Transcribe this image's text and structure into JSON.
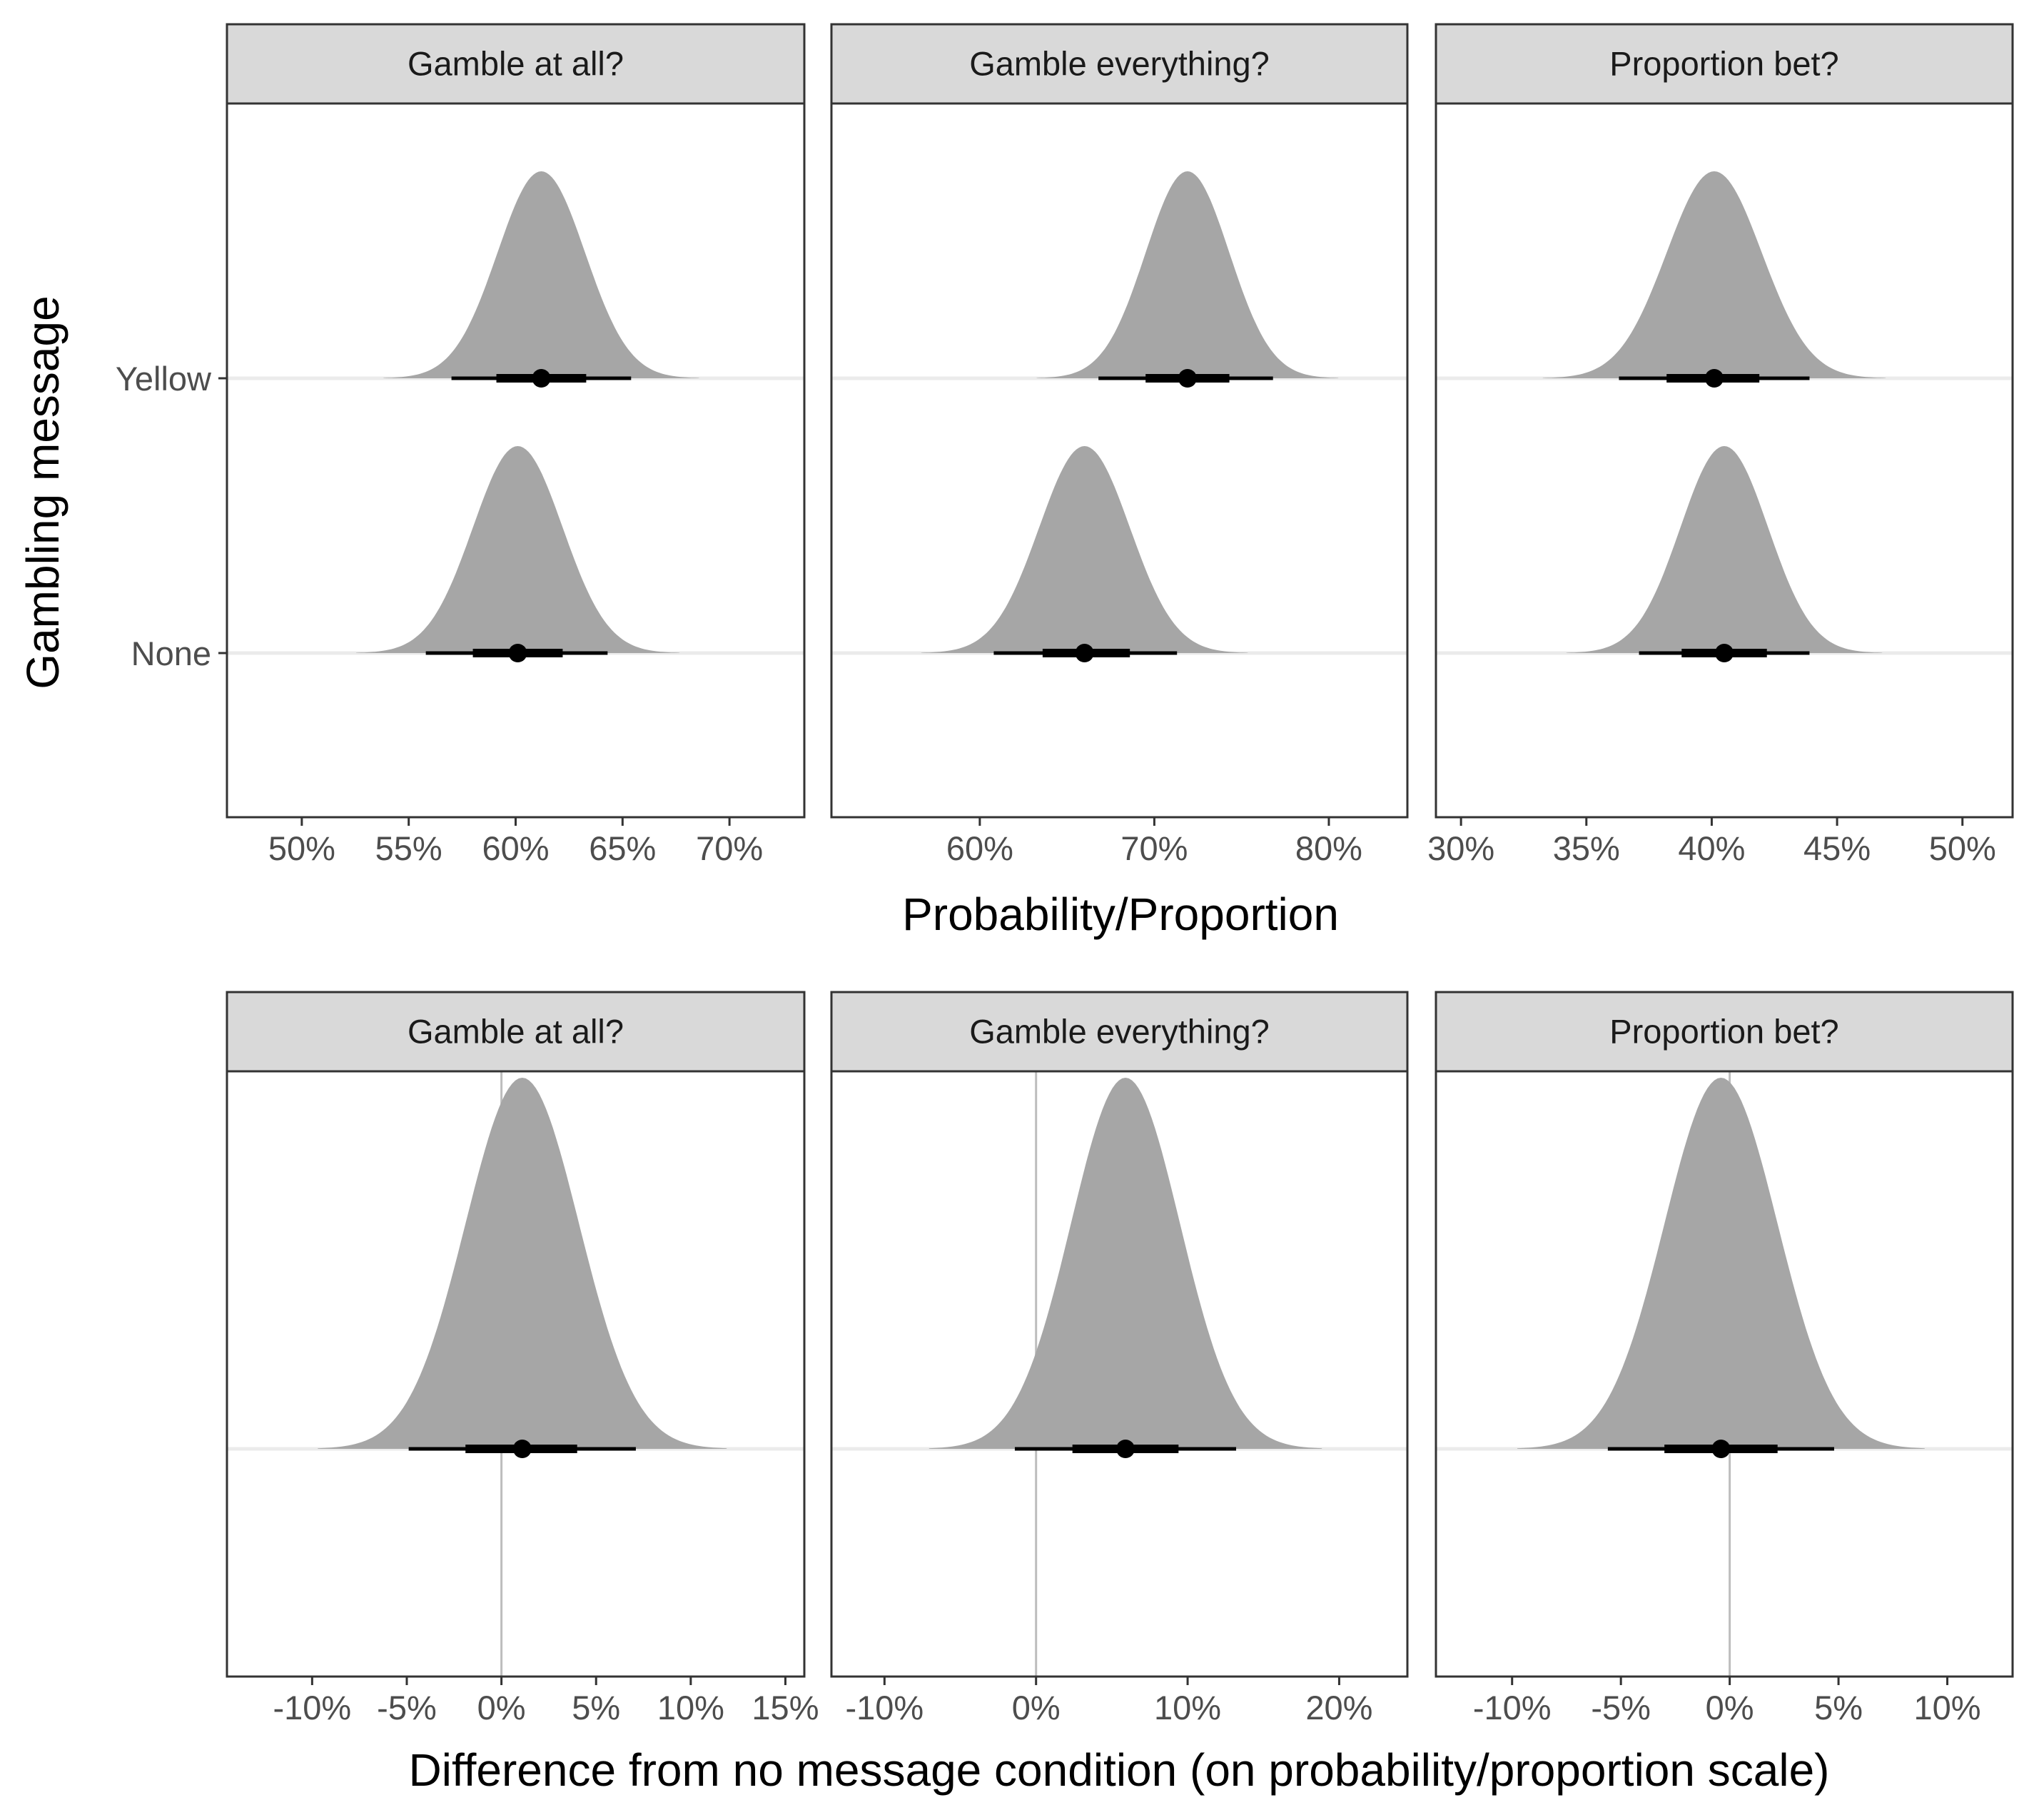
{
  "chart_data": [
    {
      "type": "halfeye",
      "row": "top",
      "title": "Gamble at all?",
      "xlabel": "Probability/Proportion",
      "ylabel": "Gambling message",
      "xlim": [
        0.465,
        0.735
      ],
      "x_ticks": [
        0.5,
        0.55,
        0.6,
        0.65,
        0.7
      ],
      "x_tick_labels": [
        "50%",
        "55%",
        "60%",
        "65%",
        "70%"
      ],
      "y_categories": [
        "Yellow",
        "None"
      ],
      "series": [
        {
          "category": "Yellow",
          "median": 0.612,
          "interval_66": [
            0.591,
            0.633
          ],
          "interval_95": [
            0.57,
            0.654
          ],
          "sd": 0.0205
        },
        {
          "category": "None",
          "median": 0.601,
          "interval_66": [
            0.58,
            0.622
          ],
          "interval_95": [
            0.558,
            0.643
          ],
          "sd": 0.021
        }
      ]
    },
    {
      "type": "halfeye",
      "row": "top",
      "title": "Gamble everything?",
      "xlabel": "Probability/Proportion",
      "ylabel": "Gambling message",
      "xlim": [
        0.515,
        0.845
      ],
      "x_ticks": [
        0.6,
        0.7,
        0.8
      ],
      "x_tick_labels": [
        "60%",
        "70%",
        "80%"
      ],
      "y_categories": [
        "Yellow",
        "None"
      ],
      "series": [
        {
          "category": "Yellow",
          "median": 0.719,
          "interval_66": [
            0.695,
            0.743
          ],
          "interval_95": [
            0.668,
            0.768
          ],
          "sd": 0.024
        },
        {
          "category": "None",
          "median": 0.66,
          "interval_66": [
            0.636,
            0.686
          ],
          "interval_95": [
            0.608,
            0.713
          ],
          "sd": 0.026
        }
      ]
    },
    {
      "type": "halfeye",
      "row": "top",
      "title": "Proportion bet?",
      "xlabel": "Probability/Proportion",
      "ylabel": "Gambling message",
      "xlim": [
        0.29,
        0.52
      ],
      "x_ticks": [
        0.3,
        0.35,
        0.4,
        0.45,
        0.5
      ],
      "x_tick_labels": [
        "30%",
        "35%",
        "40%",
        "45%",
        "50%"
      ],
      "y_categories": [
        "Yellow",
        "None"
      ],
      "series": [
        {
          "category": "Yellow",
          "median": 0.401,
          "interval_66": [
            0.382,
            0.419
          ],
          "interval_95": [
            0.363,
            0.439
          ],
          "sd": 0.019
        },
        {
          "category": "None",
          "median": 0.405,
          "interval_66": [
            0.388,
            0.422
          ],
          "interval_95": [
            0.371,
            0.439
          ],
          "sd": 0.0175
        }
      ]
    },
    {
      "type": "halfeye",
      "row": "bottom",
      "title": "Gamble at all?",
      "xlabel": "Difference from no message condition (on probability/proportion scale)",
      "xlim": [
        -0.145,
        0.16
      ],
      "x_ticks": [
        -0.1,
        -0.05,
        0.0,
        0.05,
        0.1,
        0.15
      ],
      "x_tick_labels": [
        "-10%",
        "-5%",
        "0%",
        "5%",
        "10%",
        "15%"
      ],
      "reference_line": 0,
      "series": [
        {
          "median": 0.011,
          "interval_66": [
            -0.019,
            0.04
          ],
          "interval_95": [
            -0.049,
            0.071
          ],
          "sd": 0.03
        }
      ]
    },
    {
      "type": "halfeye",
      "row": "bottom",
      "title": "Gamble everything?",
      "xlabel": "Difference from no message condition (on probability/proportion scale)",
      "xlim": [
        -0.135,
        0.245
      ],
      "x_ticks": [
        -0.1,
        0.0,
        0.1,
        0.2
      ],
      "x_tick_labels": [
        "-10%",
        "0%",
        "10%",
        "20%"
      ],
      "reference_line": 0,
      "series": [
        {
          "median": 0.059,
          "interval_66": [
            0.024,
            0.094
          ],
          "interval_95": [
            -0.014,
            0.132
          ],
          "sd": 0.036
        }
      ]
    },
    {
      "type": "halfeye",
      "row": "bottom",
      "title": "Proportion bet?",
      "xlabel": "Difference from no message condition (on probability/proportion scale)",
      "xlim": [
        -0.135,
        0.13
      ],
      "x_ticks": [
        -0.1,
        -0.05,
        0.0,
        0.05,
        0.1
      ],
      "x_tick_labels": [
        "-10%",
        "-5%",
        "0%",
        "5%",
        "10%"
      ],
      "reference_line": 0,
      "series": [
        {
          "median": -0.004,
          "interval_66": [
            -0.03,
            0.022
          ],
          "interval_95": [
            -0.056,
            0.048
          ],
          "sd": 0.026
        }
      ]
    }
  ],
  "axis_titles": {
    "top_x": "Probability/Proportion",
    "top_y": "Gambling message",
    "bottom_x": "Difference from no message condition (on probability/proportion scale)"
  },
  "colors": {
    "density": "#a6a6a6",
    "interval": "#000000",
    "strip": "#d9d9d9",
    "border": "#333333",
    "zero_line": "#bdbdbd",
    "baseline": "#ebebeb"
  }
}
